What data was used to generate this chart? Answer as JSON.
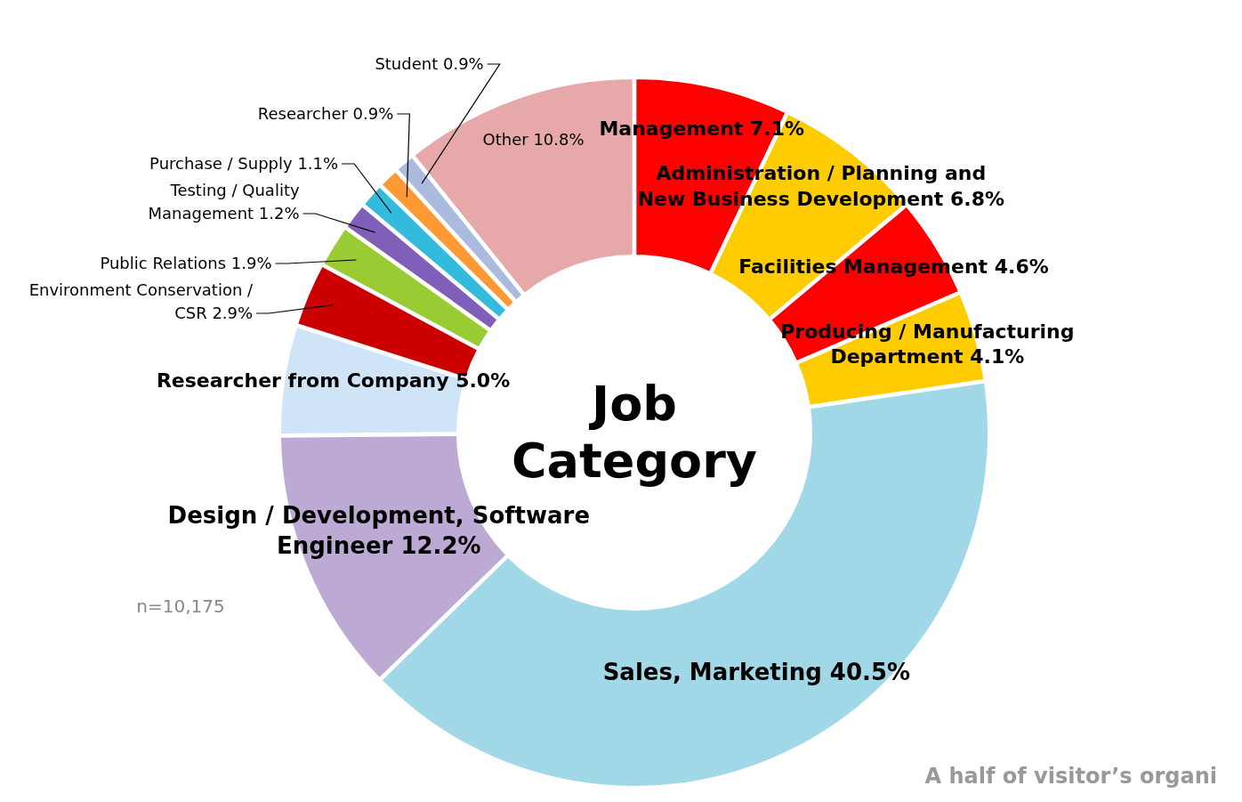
{
  "chart_data": {
    "type": "donut",
    "title": "Job Category",
    "categories": [
      "Management",
      "Administration / Planning and New Business Development",
      "Facilities Management",
      "Producing / Manufacturing Department",
      "Sales, Marketing",
      "Design / Development, Software Engineer",
      "Researcher from Company",
      "Environment Conservation / CSR",
      "Public Relations",
      "Testing / Quality Management",
      "Purchase / Supply",
      "Researcher",
      "Student",
      "Other"
    ],
    "values": [
      7.1,
      6.8,
      4.6,
      4.1,
      40.5,
      12.2,
      5.0,
      2.9,
      1.9,
      1.2,
      1.1,
      0.9,
      0.9,
      10.8
    ],
    "value_labels": [
      "7.1%",
      "6.8%",
      "4.6%",
      "4.1%",
      "40.5%",
      "12.2%",
      "5.0%",
      "2.9%",
      "1.9%",
      "1.2%",
      "1.1%",
      "0.9%",
      "0.9%",
      "10.8%"
    ],
    "colors": [
      "#ff0000",
      "#ffcc00",
      "#ff0000",
      "#ffcc00",
      "#a0d8e8",
      "#bcaad4",
      "#d0e4f8",
      "#cc0000",
      "#99cc33",
      "#7f5fb8",
      "#33bbdd",
      "#ff9933",
      "#aabbdd",
      "#e6a8a8"
    ],
    "annotations": [
      "n=10,175",
      "A half of visitor’s organi"
    ]
  }
}
